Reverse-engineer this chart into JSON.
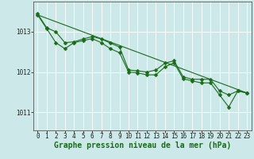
{
  "background_color": "#cce8e8",
  "plot_bg_color": "#cce8e8",
  "grid_color": "#ffffff",
  "line_color": "#1a6b1a",
  "xlabel": "Graphe pression niveau de la mer (hPa)",
  "xlabel_fontsize": 7,
  "ylabel_ticks": [
    1011,
    1012,
    1013
  ],
  "ylim": [
    1010.55,
    1013.75
  ],
  "xlim": [
    -0.5,
    23.5
  ],
  "xticks": [
    0,
    1,
    2,
    3,
    4,
    5,
    6,
    7,
    8,
    9,
    10,
    11,
    12,
    13,
    14,
    15,
    16,
    17,
    18,
    19,
    20,
    21,
    22,
    23
  ],
  "series1_x": [
    0,
    1,
    2,
    3,
    4,
    5,
    6,
    7,
    8,
    9,
    10,
    11,
    12,
    13,
    14,
    15,
    16,
    17,
    18,
    19,
    20,
    21,
    22,
    23
  ],
  "series1_y": [
    1013.45,
    1013.1,
    1013.0,
    1012.73,
    1012.75,
    1012.82,
    1012.88,
    1012.82,
    1012.72,
    1012.62,
    1012.05,
    1012.03,
    1012.0,
    1012.05,
    1012.22,
    1012.28,
    1011.88,
    1011.82,
    1011.82,
    1011.82,
    1011.53,
    1011.43,
    1011.53,
    1011.48
  ],
  "series2_x": [
    0,
    1,
    2,
    3,
    4,
    5,
    6,
    7,
    8,
    9,
    10,
    11,
    12,
    13,
    14,
    15,
    16,
    17,
    18,
    19,
    20,
    21,
    22,
    23
  ],
  "series2_y": [
    1013.42,
    1013.08,
    1012.73,
    1012.58,
    1012.73,
    1012.78,
    1012.83,
    1012.73,
    1012.58,
    1012.48,
    1012.0,
    1011.98,
    1011.93,
    1011.93,
    1012.13,
    1012.23,
    1011.83,
    1011.78,
    1011.73,
    1011.73,
    1011.43,
    1011.13,
    1011.53,
    1011.48
  ],
  "trend_x": [
    0,
    23
  ],
  "trend_y": [
    1013.42,
    1011.48
  ],
  "marker": "D",
  "marker_size": 2.5,
  "linewidth": 0.8,
  "tick_fontsize": 5.5,
  "grid_linewidth": 0.6
}
